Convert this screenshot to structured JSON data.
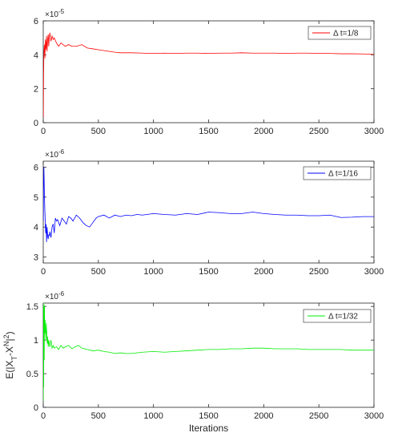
{
  "chart_data": [
    {
      "type": "line",
      "color": "#ff0000",
      "exponent_label": "×10",
      "exponent_power": "-5",
      "legend_location": "top-right",
      "series": [
        {
          "name": "Δ t=1/8",
          "x": [
            1,
            3,
            6,
            10,
            15,
            20,
            25,
            30,
            35,
            40,
            45,
            50,
            55,
            60,
            70,
            80,
            90,
            100,
            120,
            140,
            160,
            180,
            200,
            230,
            260,
            300,
            350,
            400,
            450,
            500,
            550,
            600,
            650,
            700,
            800,
            900,
            1000,
            1100,
            1200,
            1300,
            1400,
            1500,
            1600,
            1700,
            1800,
            1900,
            2000,
            2100,
            2200,
            2300,
            2400,
            2500,
            2600,
            2700,
            2800,
            2900,
            3000
          ],
          "y": [
            0.3,
            2.8,
            4.1,
            4.6,
            3.8,
            4.9,
            4.3,
            5.1,
            4.2,
            4.9,
            5.2,
            4.5,
            5.0,
            5.3,
            4.8,
            5.1,
            4.9,
            5.0,
            4.7,
            4.5,
            4.7,
            4.6,
            4.5,
            4.6,
            4.5,
            4.5,
            4.6,
            4.4,
            4.35,
            4.3,
            4.25,
            4.2,
            4.15,
            4.12,
            4.12,
            4.1,
            4.08,
            4.1,
            4.08,
            4.1,
            4.1,
            4.08,
            4.1,
            4.1,
            4.12,
            4.1,
            4.1,
            4.1,
            4.08,
            4.1,
            4.1,
            4.08,
            4.08,
            4.06,
            4.06,
            4.05,
            4.02
          ]
        }
      ],
      "xlim": [
        0,
        3000
      ],
      "ylim": [
        0,
        6
      ],
      "xticks": [
        "0",
        "500",
        "1000",
        "1500",
        "2000",
        "2500",
        "3000"
      ],
      "yticks": [
        "0",
        "2",
        "4",
        "6"
      ],
      "ytick_values": [
        0,
        2,
        4,
        6
      ],
      "xlabel": "",
      "ylabel": ""
    },
    {
      "type": "line",
      "color": "#0000ff",
      "exponent_label": "×10",
      "exponent_power": "-6",
      "legend_location": "top-right",
      "series": [
        {
          "name": "Δ t=1/16",
          "x": [
            1,
            3,
            6,
            10,
            14,
            18,
            22,
            26,
            30,
            35,
            40,
            45,
            50,
            55,
            60,
            70,
            80,
            90,
            100,
            110,
            120,
            130,
            150,
            170,
            190,
            210,
            230,
            250,
            270,
            300,
            330,
            360,
            390,
            420,
            450,
            480,
            500,
            550,
            600,
            650,
            700,
            750,
            800,
            850,
            900,
            1000,
            1100,
            1200,
            1300,
            1400,
            1500,
            1600,
            1700,
            1800,
            1900,
            2000,
            2100,
            2200,
            2300,
            2400,
            2500,
            2600,
            2700,
            2800,
            2900,
            3000
          ],
          "y": [
            4.2,
            5.5,
            6.0,
            5.2,
            4.6,
            4.2,
            3.8,
            4.1,
            3.5,
            4.0,
            3.7,
            3.6,
            3.75,
            3.7,
            3.85,
            3.65,
            4.0,
            4.1,
            3.8,
            4.3,
            4.2,
            4.25,
            4.05,
            4.3,
            4.2,
            4.1,
            4.35,
            4.3,
            4.2,
            4.4,
            4.3,
            4.15,
            4.05,
            4.0,
            4.15,
            4.3,
            4.35,
            4.4,
            4.3,
            4.4,
            4.35,
            4.4,
            4.38,
            4.42,
            4.4,
            4.45,
            4.42,
            4.4,
            4.45,
            4.42,
            4.5,
            4.48,
            4.45,
            4.45,
            4.5,
            4.45,
            4.42,
            4.4,
            4.4,
            4.38,
            4.38,
            4.4,
            4.32,
            4.33,
            4.35,
            4.35
          ]
        }
      ],
      "xlim": [
        0,
        3000
      ],
      "ylim": [
        2.8,
        6.2
      ],
      "xticks": [
        "0",
        "500",
        "1000",
        "1500",
        "2000",
        "2500",
        "3000"
      ],
      "yticks": [
        "3",
        "4",
        "5",
        "6"
      ],
      "ytick_values": [
        3,
        4,
        5,
        6
      ],
      "xlabel": "",
      "ylabel": ""
    },
    {
      "type": "line",
      "color": "#00ee00",
      "exponent_label": "×10",
      "exponent_power": "-6",
      "legend_location": "top-right",
      "series": [
        {
          "name": "Δ t=1/32",
          "x": [
            1,
            3,
            5,
            8,
            11,
            14,
            17,
            20,
            24,
            28,
            32,
            36,
            40,
            45,
            50,
            55,
            60,
            70,
            80,
            90,
            100,
            120,
            140,
            160,
            180,
            200,
            230,
            260,
            290,
            320,
            350,
            400,
            450,
            500,
            550,
            600,
            650,
            700,
            750,
            800,
            900,
            1000,
            1100,
            1200,
            1300,
            1400,
            1500,
            1600,
            1700,
            1800,
            1900,
            2000,
            2100,
            2200,
            2300,
            2400,
            2500,
            2600,
            2700,
            2800,
            2900,
            3000
          ],
          "y": [
            0.1,
            0.6,
            1.45,
            1.0,
            1.52,
            1.1,
            1.3,
            1.15,
            1.0,
            1.25,
            1.1,
            0.95,
            1.05,
            0.9,
            1.0,
            0.95,
            0.9,
            1.0,
            0.88,
            0.92,
            0.88,
            0.9,
            0.86,
            0.92,
            0.88,
            0.9,
            0.92,
            0.87,
            0.9,
            0.92,
            0.88,
            0.86,
            0.84,
            0.85,
            0.83,
            0.82,
            0.8,
            0.81,
            0.8,
            0.8,
            0.82,
            0.83,
            0.82,
            0.83,
            0.84,
            0.85,
            0.86,
            0.86,
            0.87,
            0.87,
            0.88,
            0.88,
            0.87,
            0.87,
            0.87,
            0.86,
            0.86,
            0.86,
            0.86,
            0.85,
            0.85,
            0.85
          ],
          "spikes": [
            [
              2,
              1.55
            ],
            [
              4,
              0.3
            ],
            [
              7,
              1.5
            ],
            [
              9,
              0.7
            ]
          ]
        }
      ],
      "xlim": [
        0,
        3000
      ],
      "ylim": [
        0,
        1.55
      ],
      "xticks": [
        "0",
        "500",
        "1000",
        "1500",
        "2000",
        "2500",
        "3000"
      ],
      "yticks": [
        "0",
        "0.5",
        "1",
        "1.5"
      ],
      "ytick_values": [
        0,
        0.5,
        1,
        1.5
      ],
      "xlabel": "Iterations",
      "ylabel": "E(|X_T-X^N|^2)"
    }
  ]
}
